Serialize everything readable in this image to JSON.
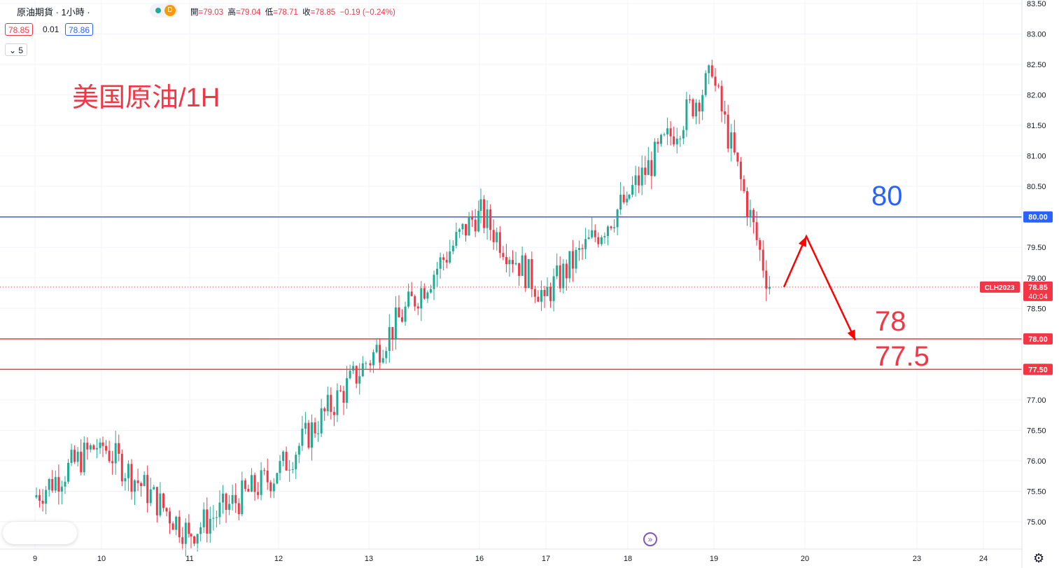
{
  "header": {
    "title": "原油期貨 · 1小時 ·",
    "ohlc": {
      "open_label": "開",
      "open": "=79.03",
      "high_label": "高",
      "high": "=79.04",
      "low_label": "低",
      "low": "=78.71",
      "close_label": "收",
      "close": "=78.85",
      "change": "−0.19 (−0.24%)"
    },
    "market_badge": "D",
    "bid": "78.85",
    "spread": "0.01",
    "ask": "78.86",
    "indicator_toggle": "5"
  },
  "annotations": {
    "main_text": "美国原油/1H",
    "label_80": "80",
    "label_78": "78",
    "label_77_5": "77.5"
  },
  "colors": {
    "up": "#22ab94",
    "down": "#f23645",
    "blue_line": "#2962ff",
    "red_line": "#f23645",
    "arrow": "#ff0000"
  },
  "chart_data": {
    "type": "candlestick",
    "symbol_tag": "CLH2023",
    "last_price": "78.85",
    "countdown": "40:04",
    "ylim": [
      74.55,
      83.55
    ],
    "y_ticks": [
      "83.50",
      "83.00",
      "82.50",
      "82.00",
      "81.50",
      "81.00",
      "80.50",
      "80.00",
      "79.50",
      "79.00",
      "78.50",
      "78.00",
      "77.50",
      "77.00",
      "76.50",
      "76.00",
      "75.50",
      "75.00"
    ],
    "x_ticks": [
      "9",
      "10",
      "11",
      "12",
      "13",
      "16",
      "17",
      "18",
      "19",
      "20",
      "23",
      "24"
    ],
    "horizontal_lines": [
      {
        "price": 80.0,
        "label": "80.00",
        "color": "blue"
      },
      {
        "price": 78.0,
        "label": "78.00",
        "color": "red"
      },
      {
        "price": 77.5,
        "label": "77.50",
        "color": "red"
      }
    ],
    "arrow_path_prices": [
      78.85,
      79.68,
      77.98
    ],
    "segments": [
      {
        "from_day": "9",
        "to_day": "10",
        "open": 75.4,
        "close": 76.3
      },
      {
        "from_day": "10",
        "to_day": "11",
        "open": 76.3,
        "close": 74.8
      },
      {
        "from_day": "11",
        "to_day": "12",
        "open": 74.8,
        "close": 75.8
      },
      {
        "from_day": "12",
        "to_day": "13",
        "open": 75.8,
        "close": 77.6
      },
      {
        "from_day": "13",
        "to_day": "16",
        "open": 77.6,
        "close": 80.1
      },
      {
        "from_day": "16",
        "to_day": "17",
        "open": 80.1,
        "close": 78.7
      },
      {
        "from_day": "17",
        "to_day": "18",
        "open": 78.7,
        "close": 80.3
      },
      {
        "from_day": "18",
        "to_day": "19",
        "open": 80.3,
        "close": 82.3
      },
      {
        "from_day": "19",
        "to_day": "19.6",
        "open": 82.3,
        "close": 78.85
      }
    ]
  }
}
